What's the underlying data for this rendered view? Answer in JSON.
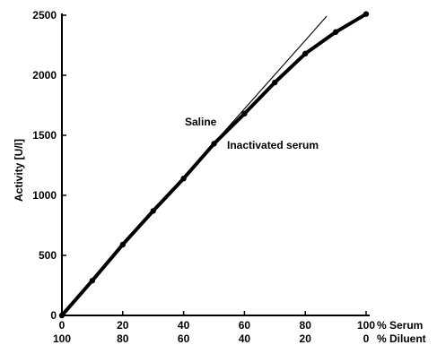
{
  "chart_data": {
    "type": "line",
    "ylabel": "Activity [U/l]",
    "x_axis_label_top": "% Serum",
    "x_axis_label_bottom": "% Diluent",
    "x_ticks_serum": [
      "0",
      "20",
      "40",
      "60",
      "80",
      "100"
    ],
    "x_ticks_diluent": [
      "100",
      "80",
      "60",
      "40",
      "20",
      "0"
    ],
    "y_ticks": [
      "0",
      "500",
      "1000",
      "1500",
      "2000",
      "2500"
    ],
    "xlim": [
      0,
      100
    ],
    "ylim": [
      0,
      2500
    ],
    "grid": false,
    "series": [
      {
        "name": "Saline",
        "style": "thin",
        "x": [
          0,
          20,
          40,
          60,
          80,
          87
        ],
        "y": [
          0,
          580,
          1150,
          1720,
          2290,
          2490
        ]
      },
      {
        "name": "Inactivated serum",
        "style": "thick",
        "x": [
          0,
          10,
          20,
          30,
          40,
          50,
          60,
          70,
          80,
          90,
          100
        ],
        "y": [
          0,
          290,
          590,
          870,
          1140,
          1430,
          1680,
          1940,
          2180,
          2360,
          2510
        ]
      }
    ],
    "colors": {
      "axis": "#000000",
      "line": "#000000"
    }
  }
}
